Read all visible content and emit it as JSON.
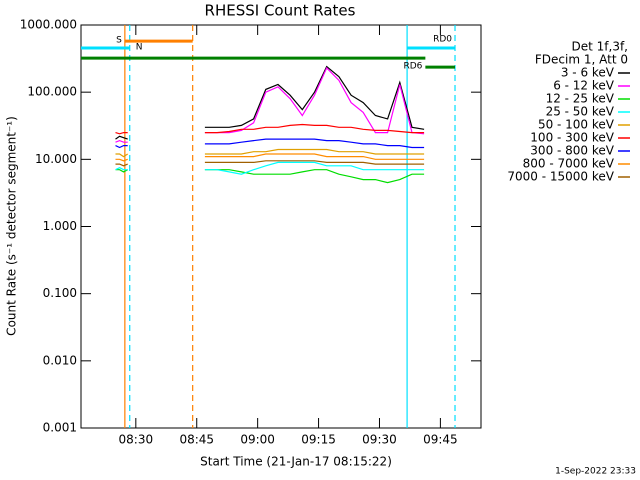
{
  "chart_data": {
    "type": "line",
    "title": "RHESSI Count Rates",
    "xlabel": "Start Time (21-Jan-17 08:15:22)",
    "ylabel": "Count Rate (s⁻¹ detector segment⁻¹)",
    "legend_title": [
      "Det 1f,3f,",
      "FDecim 1, Att 0"
    ],
    "footer": "1-Sep-2022 23:33",
    "log_y": true,
    "xlim": [
      496.5,
      595
    ],
    "ylim": [
      0.001,
      1000
    ],
    "xticks": [
      {
        "value": 510,
        "label": "08:30"
      },
      {
        "value": 525,
        "label": "08:45"
      },
      {
        "value": 540,
        "label": "09:00"
      },
      {
        "value": 555,
        "label": "09:15"
      },
      {
        "value": 570,
        "label": "09:30"
      },
      {
        "value": 585,
        "label": "09:45"
      }
    ],
    "yticks": [
      {
        "value": 1000,
        "label": "1000.000"
      },
      {
        "value": 100,
        "label": "100.000"
      },
      {
        "value": 10,
        "label": "10.000"
      },
      {
        "value": 1,
        "label": "1.000"
      },
      {
        "value": 0.1,
        "label": "0.100"
      },
      {
        "value": 0.01,
        "label": "0.010"
      },
      {
        "value": 0.001,
        "label": "0.001"
      }
    ],
    "x": [
      505,
      506,
      507,
      508,
      517,
      527,
      530,
      533,
      536,
      539,
      542,
      545,
      548,
      551,
      554,
      557,
      560,
      563,
      566,
      569,
      572,
      575,
      578,
      581
    ],
    "series": [
      {
        "name": "3 - 6 keV",
        "color": "#000000",
        "values": [
          20,
          22,
          21,
          20,
          null,
          30,
          30,
          30,
          32,
          40,
          110,
          130,
          90,
          55,
          100,
          240,
          170,
          90,
          70,
          45,
          40,
          140,
          30,
          28
        ]
      },
      {
        "name": "6 - 12 keV",
        "color": "#ff00ff",
        "values": [
          18,
          19,
          18,
          18,
          null,
          25,
          25,
          25,
          27,
          35,
          100,
          120,
          80,
          45,
          90,
          230,
          150,
          70,
          50,
          25,
          25,
          130,
          25,
          24
        ]
      },
      {
        "name": "12 - 25 keV",
        "color": "#00dd00",
        "values": [
          7,
          7,
          6.5,
          7,
          null,
          7,
          7,
          7,
          6.5,
          6,
          6,
          6,
          6,
          6.5,
          7,
          7,
          6,
          5.5,
          5,
          5,
          4.5,
          5,
          6,
          6
        ]
      },
      {
        "name": "25 - 50 keV",
        "color": "#00ffff",
        "values": [
          7,
          7.5,
          7,
          7,
          null,
          7,
          7,
          6.5,
          6,
          7,
          8,
          9,
          9,
          9,
          9,
          8,
          8,
          8,
          7,
          7,
          7,
          7,
          7,
          7
        ]
      },
      {
        "name": "50 - 100 keV",
        "color": "#e0a000",
        "values": [
          12,
          12,
          11,
          12,
          null,
          12,
          12,
          12,
          12,
          13,
          13,
          14,
          14,
          14,
          14,
          14,
          13,
          13,
          13,
          12,
          12,
          12,
          12,
          12
        ]
      },
      {
        "name": "100 - 300 keV",
        "color": "#ff0000",
        "values": [
          25,
          24,
          25,
          25,
          null,
          25,
          25,
          26,
          28,
          28,
          30,
          30,
          32,
          33,
          32,
          32,
          30,
          30,
          28,
          27,
          27,
          26,
          25,
          25
        ]
      },
      {
        "name": "300 - 800 keV",
        "color": "#0000ff",
        "values": [
          16,
          15,
          16,
          16,
          null,
          17,
          17,
          17,
          18,
          19,
          20,
          20,
          20,
          20,
          20,
          19,
          19,
          18,
          17,
          17,
          16,
          16,
          15,
          15
        ]
      },
      {
        "name": "800 - 7000 keV",
        "color": "#ff8c00",
        "values": [
          10,
          10,
          9.5,
          10,
          null,
          11,
          11,
          11,
          11,
          11,
          12,
          12,
          12,
          12,
          12,
          11,
          11,
          11,
          11,
          10,
          10,
          10,
          10,
          10
        ]
      },
      {
        "name": "7000 - 15000 keV",
        "color": "#a06000",
        "values": [
          8.5,
          8.5,
          8,
          8.5,
          null,
          9,
          9,
          9,
          9,
          9,
          9.5,
          9.5,
          9.5,
          9.5,
          9.5,
          9,
          9,
          9,
          9,
          8.5,
          8.5,
          8.5,
          8.5,
          8.5
        ]
      }
    ],
    "vlines": [
      {
        "x": 507.3,
        "color": "#ff8000",
        "dashed": false
      },
      {
        "x": 508.5,
        "color": "#00e0ff",
        "dashed": true
      },
      {
        "x": 524,
        "color": "#ff8000",
        "dashed": true
      },
      {
        "x": 576.8,
        "color": "#00e0ff",
        "dashed": false
      },
      {
        "x": 588.6,
        "color": "#00e0ff",
        "dashed": true
      }
    ],
    "flags": [
      {
        "label": "S",
        "x": [
          507.3,
          524
        ],
        "y": 575,
        "color": "#ff8000",
        "label_side": "left"
      },
      {
        "label": "N",
        "x": [
          496.5,
          508.5
        ],
        "y": 454,
        "color": "#00e0ff",
        "label_side": "right"
      },
      {
        "x": [
          496.5,
          581.3
        ],
        "y": 321,
        "color": "#008000"
      },
      {
        "label": "RD0",
        "x": [
          576.8,
          588.6
        ],
        "y": 454,
        "color": "#00e0ff",
        "label_side": "above"
      },
      {
        "label": "RD6",
        "x": [
          581.3,
          588.6
        ],
        "y": 236,
        "color": "#008000",
        "label_side": "left"
      }
    ]
  }
}
